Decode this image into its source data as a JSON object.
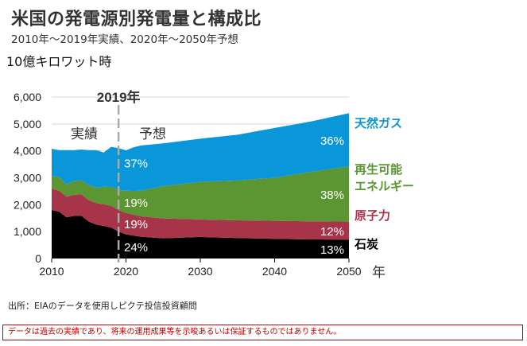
{
  "title": "米国の発電源別発電量と構成比",
  "subtitle": "2010年～2019年実績、2020年～2050年予想",
  "unit_label": "10億キロワット時",
  "source": "出所：EIAのデータを使用しピクテ投信投資顧問",
  "disclaimer": "データは過去の実績であり、将来の運用成果等を示唆あるいは保証するものではありません。",
  "colors": {
    "coal": "#000000",
    "nuclear": "#a8344a",
    "renewables": "#5b9632",
    "natural_gas": "#0a97d9",
    "grid": "#d9d9d9",
    "divider": "#aaaaaa"
  },
  "chart_data": {
    "type": "area",
    "stacked": true,
    "title": "米国の発電源別発電量と構成比",
    "subtitle": "2010年～2019年実績、2020年～2050年予想",
    "ylabel": "10億キロワット時",
    "xlabel": "年",
    "ylim": [
      0,
      6000
    ],
    "xlim": [
      2010,
      2050
    ],
    "yticks": [
      0,
      1000,
      2000,
      3000,
      4000,
      5000,
      6000
    ],
    "ytick_labels": [
      "0",
      "1,000",
      "2,000",
      "3,000",
      "4,000",
      "5,000",
      "6,000"
    ],
    "xticks": [
      2010,
      2020,
      2030,
      2040,
      2050
    ],
    "xtick_labels": [
      "2010",
      "2020",
      "2030",
      "2040",
      "2050"
    ],
    "grid": true,
    "x": [
      2010,
      2011,
      2012,
      2013,
      2014,
      2015,
      2016,
      2017,
      2018,
      2019,
      2020,
      2021,
      2022,
      2025,
      2030,
      2035,
      2040,
      2045,
      2050
    ],
    "series": [
      {
        "key": "coal",
        "name": "石炭",
        "values": [
          1800,
          1740,
          1530,
          1580,
          1590,
          1370,
          1260,
          1210,
          1150,
          1000,
          900,
          850,
          810,
          750,
          800,
          760,
          730,
          710,
          700
        ]
      },
      {
        "key": "nuclear",
        "name": "原子力",
        "values": [
          800,
          780,
          770,
          790,
          790,
          800,
          800,
          810,
          810,
          800,
          790,
          780,
          760,
          740,
          650,
          660,
          670,
          670,
          670
        ]
      },
      {
        "key": "renewables",
        "name": "再生可能エネルギー",
        "values": [
          450,
          520,
          450,
          520,
          520,
          560,
          570,
          650,
          700,
          750,
          830,
          880,
          950,
          1200,
          1400,
          1480,
          1600,
          1850,
          2050
        ]
      },
      {
        "key": "natural_gas",
        "name": "天然ガス",
        "values": [
          1030,
          990,
          1280,
          1140,
          1150,
          1300,
          1400,
          1270,
          1490,
          1550,
          1500,
          1620,
          1680,
          1590,
          1600,
          1700,
          1850,
          1870,
          1980
        ]
      }
    ],
    "annotations": {
      "marker_year": 2019,
      "marker_label": "2019年",
      "actual_label": "実績",
      "forecast_label": "予想",
      "share_2019": {
        "natural_gas": "37%",
        "renewables": "19%",
        "nuclear": "19%",
        "coal": "24%"
      },
      "share_2050": {
        "natural_gas": "36%",
        "renewables": "38%",
        "nuclear": "12%",
        "coal": "13%"
      }
    },
    "legend": {
      "placement": "right",
      "entries": [
        {
          "key": "natural_gas",
          "label": "天然ガス"
        },
        {
          "key": "renewables",
          "label": "再生可能",
          "label2": "エネルギー"
        },
        {
          "key": "nuclear",
          "label": "原子力"
        },
        {
          "key": "coal",
          "label": "石炭"
        }
      ]
    }
  }
}
